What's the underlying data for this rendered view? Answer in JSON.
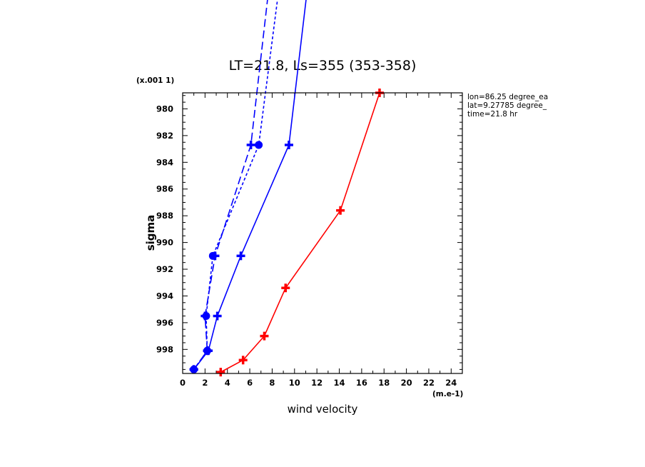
{
  "chart_data": {
    "type": "line",
    "title": "LT=21.8, Ls=355 (353-358)",
    "xlabel": "wind velocity",
    "ylabel": "sigma",
    "x_units": "(m.e-1)",
    "y_units": "(x.001 1)",
    "xlim": [
      0,
      25
    ],
    "ylim": [
      999.8,
      978.8
    ],
    "x_ticks": [
      0,
      2,
      4,
      6,
      8,
      10,
      12,
      14,
      16,
      18,
      20,
      22,
      24
    ],
    "y_ticks": [
      980,
      982,
      984,
      986,
      988,
      990,
      992,
      994,
      996,
      998
    ],
    "info": [
      "lon=86.25 degree_ea",
      "lat=9.27785 degree_",
      "time=21.8 hr"
    ],
    "series": [
      {
        "color": "#ff0000",
        "line": "solid",
        "marker": "plus",
        "points": [
          [
            3.4,
            999.7
          ],
          [
            5.4,
            998.8
          ],
          [
            7.3,
            997.0
          ],
          [
            9.2,
            993.4
          ],
          [
            14.1,
            987.6
          ],
          [
            17.6,
            978.8
          ]
        ]
      },
      {
        "color": "#0000ff",
        "line": "solid",
        "marker": "plus",
        "points": [
          [
            1.0,
            999.5
          ],
          [
            2.3,
            998.1
          ],
          [
            3.1,
            995.5
          ],
          [
            5.2,
            991.0
          ],
          [
            9.5,
            982.7
          ],
          [
            12.7,
            960.0
          ]
        ]
      },
      {
        "color": "#0000ff",
        "line": "dotted",
        "marker": "dot",
        "points": [
          [
            1.0,
            999.5
          ],
          [
            2.2,
            998.1
          ],
          [
            2.1,
            995.5
          ],
          [
            2.7,
            991.0
          ],
          [
            6.8,
            982.7
          ],
          [
            10.3,
            960.0
          ]
        ]
      },
      {
        "color": "#0000ff",
        "line": "dashed",
        "marker": "plus",
        "points": [
          [
            1.0,
            999.5
          ],
          [
            2.2,
            998.1
          ],
          [
            2.0,
            995.5
          ],
          [
            2.9,
            991.0
          ],
          [
            6.1,
            982.7
          ],
          [
            9.2,
            960.0
          ]
        ]
      }
    ]
  }
}
